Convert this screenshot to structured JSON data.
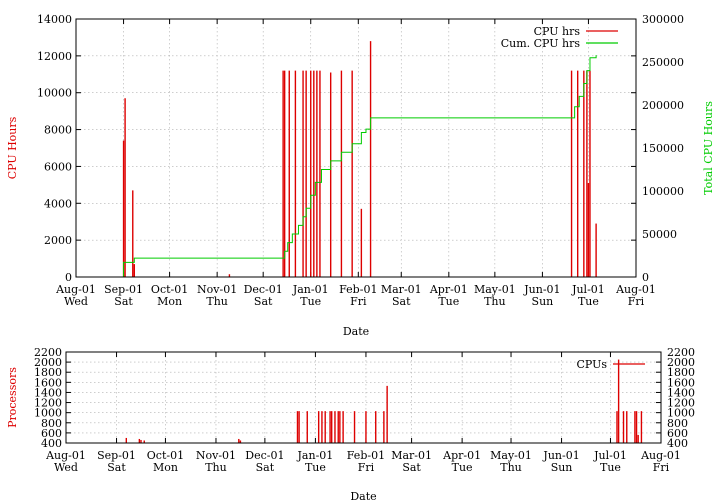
{
  "chart_data": [
    {
      "type": "bar",
      "xlabel": "Date",
      "ylabel": "CPU Hours",
      "y2label": "Total CPU Hours",
      "ylim": [
        0,
        14000
      ],
      "y2lim": [
        0,
        300000
      ],
      "yticks": [
        "0",
        "2000",
        "4000",
        "6000",
        "8000",
        "10000",
        "12000",
        "14000"
      ],
      "y2ticks": [
        "0",
        "50000",
        "100000",
        "150000",
        "200000",
        "250000",
        "300000"
      ],
      "xlim": [
        0,
        365
      ],
      "xticks": [
        {
          "d": 0,
          "l1": "Aug-01",
          "l2": "Wed"
        },
        {
          "d": 31,
          "l1": "Sep-01",
          "l2": "Sat"
        },
        {
          "d": 61,
          "l1": "Oct-01",
          "l2": "Mon"
        },
        {
          "d": 92,
          "l1": "Nov-01",
          "l2": "Thu"
        },
        {
          "d": 122,
          "l1": "Dec-01",
          "l2": "Sat"
        },
        {
          "d": 153,
          "l1": "Jan-01",
          "l2": "Tue"
        },
        {
          "d": 184,
          "l1": "Feb-01",
          "l2": "Fri"
        },
        {
          "d": 212,
          "l1": "Mar-01",
          "l2": "Sat"
        },
        {
          "d": 243,
          "l1": "Apr-01",
          "l2": "Tue"
        },
        {
          "d": 273,
          "l1": "May-01",
          "l2": "Thu"
        },
        {
          "d": 304,
          "l1": "Jun-01",
          "l2": "Sun"
        },
        {
          "d": 334,
          "l1": "Jul-01",
          "l2": "Tue"
        },
        {
          "d": 365,
          "l1": "Aug-01",
          "l2": "Fri"
        }
      ],
      "grid": true,
      "legend_position": "top-right",
      "series": [
        {
          "name": "CPU hrs",
          "color": "#dd0000",
          "points": [
            [
              31,
              7400
            ],
            [
              32,
              9700
            ],
            [
              37,
              4700
            ],
            [
              38,
              700
            ],
            [
              100,
              150
            ],
            [
              135,
              11200
            ],
            [
              136,
              11200
            ],
            [
              139,
              11200
            ],
            [
              143,
              11200
            ],
            [
              148,
              11200
            ],
            [
              150,
              11200
            ],
            [
              153,
              11200
            ],
            [
              155,
              11200
            ],
            [
              157,
              11200
            ],
            [
              159,
              11200
            ],
            [
              166,
              11100
            ],
            [
              173,
              11200
            ],
            [
              180,
              11200
            ],
            [
              186,
              3700
            ],
            [
              192,
              12800
            ],
            [
              323,
              11200
            ],
            [
              327,
              11200
            ],
            [
              331,
              11200
            ],
            [
              333,
              11200
            ],
            [
              334,
              5100
            ],
            [
              335,
              11200
            ],
            [
              339,
              2900
            ]
          ]
        },
        {
          "name": "Cum. CPU hrs",
          "color": "#00cc00",
          "steps": [
            [
              31,
              0
            ],
            [
              31,
              17000
            ],
            [
              37,
              17000
            ],
            [
              38,
              22000
            ],
            [
              135,
              22000
            ],
            [
              136,
              30000
            ],
            [
              138,
              40000
            ],
            [
              141,
              50000
            ],
            [
              145,
              60000
            ],
            [
              148,
              70000
            ],
            [
              150,
              80000
            ],
            [
              153,
              95000
            ],
            [
              156,
              110000
            ],
            [
              160,
              125000
            ],
            [
              166,
              135000
            ],
            [
              173,
              145000
            ],
            [
              180,
              155000
            ],
            [
              186,
              168000
            ],
            [
              189,
              172000
            ],
            [
              192,
              185000
            ],
            [
              323,
              185000
            ],
            [
              325,
              198000
            ],
            [
              328,
              210000
            ],
            [
              331,
              225000
            ],
            [
              333,
              240000
            ],
            [
              335,
              255000
            ],
            [
              339,
              258000
            ]
          ]
        }
      ]
    },
    {
      "type": "bar",
      "xlabel": "Date",
      "ylabel": "Processors",
      "ylim": [
        400,
        2200
      ],
      "yticks": [
        "400",
        "600",
        "800",
        "1000",
        "1200",
        "1400",
        "1600",
        "1800",
        "2000",
        "2200"
      ],
      "y2ticks": [
        "400",
        "600",
        "800",
        "1000",
        "1200",
        "1400",
        "1600",
        "1800",
        "2000",
        "2200"
      ],
      "xlim": [
        0,
        365
      ],
      "grid": true,
      "legend_position": "top-right",
      "series": [
        {
          "name": "CPUs",
          "color": "#dd0000",
          "points": [
            [
              37,
              500
            ],
            [
              45,
              480
            ],
            [
              46,
              460
            ],
            [
              48,
              450
            ],
            [
              106,
              480
            ],
            [
              107,
              450
            ],
            [
              142,
              1030
            ],
            [
              143,
              1030
            ],
            [
              148,
              1030
            ],
            [
              155,
              1030
            ],
            [
              157,
              1030
            ],
            [
              159,
              1030
            ],
            [
              162,
              1030
            ],
            [
              163,
              1030
            ],
            [
              165,
              1030
            ],
            [
              167,
              1030
            ],
            [
              168,
              1030
            ],
            [
              170,
              1030
            ],
            [
              177,
              1030
            ],
            [
              184,
              1030
            ],
            [
              190,
              1030
            ],
            [
              195,
              1030
            ],
            [
              197,
              1530
            ],
            [
              338,
              1030
            ],
            [
              339,
              2050
            ],
            [
              342,
              1030
            ],
            [
              344,
              1030
            ],
            [
              349,
              1030
            ],
            [
              350,
              1030
            ],
            [
              351,
              560
            ],
            [
              353,
              1030
            ]
          ]
        }
      ]
    }
  ]
}
